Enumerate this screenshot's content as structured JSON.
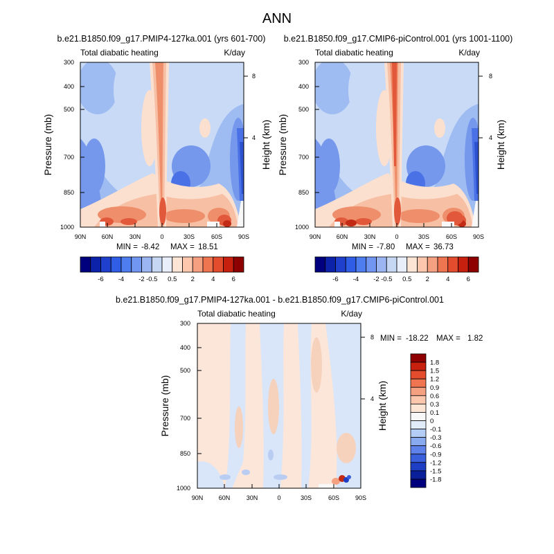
{
  "figure": {
    "title": "ANN",
    "units": "K/day",
    "field_label": "Total diabatic heating",
    "y_label": "Pressure (mb)",
    "y2_label": "Height (km)"
  },
  "chart_data": [
    {
      "type": "heatmap",
      "id": "panel-left",
      "title": "b.e21.B1850.f09_g17.PMIP4-127ka.001 (yrs 601-700)",
      "field": "Total diabatic heating",
      "units": "K/day",
      "x_ticks": [
        "90N",
        "60N",
        "30N",
        "0",
        "30S",
        "60S",
        "90S"
      ],
      "y_ticks": [
        "300",
        "400",
        "500",
        "700",
        "850",
        "1000"
      ],
      "y2_ticks": [
        "8",
        "4"
      ],
      "xlabel": "",
      "ylabel": "Pressure (mb)",
      "y2label": "Height (km)",
      "ylim": [
        1000,
        300
      ],
      "stats": {
        "min_label": "MIN =",
        "min": "-8.42",
        "max_label": "MAX =",
        "max": "18.51"
      }
    },
    {
      "type": "heatmap",
      "id": "panel-right",
      "title": "b.e21.B1850.f09_g17.CMIP6-piControl.001 (yrs 1001-1100)",
      "field": "Total diabatic heating",
      "units": "K/day",
      "x_ticks": [
        "90N",
        "60N",
        "30N",
        "0",
        "30S",
        "60S",
        "90S"
      ],
      "y_ticks": [
        "300",
        "400",
        "500",
        "700",
        "850",
        "1000"
      ],
      "y2_ticks": [
        "8",
        "4"
      ],
      "xlabel": "",
      "ylabel": "Pressure (mb)",
      "y2label": "Height (km)",
      "ylim": [
        1000,
        300
      ],
      "stats": {
        "min_label": "MIN =",
        "min": "-7.80",
        "max_label": "MAX =",
        "max": "36.73"
      }
    },
    {
      "type": "heatmap",
      "id": "panel-diff",
      "title": "b.e21.B1850.f09_g17.PMIP4-127ka.001 - b.e21.B1850.f09_g17.CMIP6-piControl.001",
      "field": "Total diabatic heating",
      "units": "K/day",
      "x_ticks": [
        "90N",
        "60N",
        "30N",
        "0",
        "30S",
        "60S",
        "90S"
      ],
      "y_ticks": [
        "300",
        "400",
        "500",
        "700",
        "850",
        "1000"
      ],
      "y2_ticks": [
        "8",
        "4"
      ],
      "xlabel": "",
      "ylabel": "Pressure (mb)",
      "y2label": "Height (km)",
      "ylim": [
        1000,
        300
      ],
      "stats": {
        "min_label": "MIN =",
        "min": "-18.22",
        "max_label": "MAX =",
        "max": "1.82"
      }
    }
  ],
  "colorbar_top": {
    "labels": [
      "-6",
      "-4",
      "-2",
      "-0.5",
      "0.5",
      "2",
      "4",
      "6"
    ],
    "colors": [
      "#00007e",
      "#0c22a8",
      "#1e40cc",
      "#2f5de6",
      "#4e7df0",
      "#7196f2",
      "#9ab5f2",
      "#c6d7f4",
      "#e8eefa",
      "#fde5d6",
      "#fcc7ad",
      "#f6a082",
      "#ee7550",
      "#e34c2c",
      "#c8200e",
      "#8e0000"
    ]
  },
  "colorbar_diff": {
    "labels": [
      "1.8",
      "1.5",
      "1.2",
      "0.9",
      "0.6",
      "0.3",
      "0.1",
      "0",
      "-0.1",
      "-0.3",
      "-0.6",
      "-0.9",
      "-1.2",
      "-1.5",
      "-1.8"
    ],
    "colors": [
      "#8e0000",
      "#c8200e",
      "#e34c2c",
      "#ee7550",
      "#f6a082",
      "#fcc7ad",
      "#fde5d6",
      "#f8f8f8",
      "#e2ebfa",
      "#b4cdf4",
      "#8aaaf0",
      "#5f82ea",
      "#3a5fdd",
      "#1e3fc4",
      "#0a1f9a",
      "#00007e"
    ]
  }
}
